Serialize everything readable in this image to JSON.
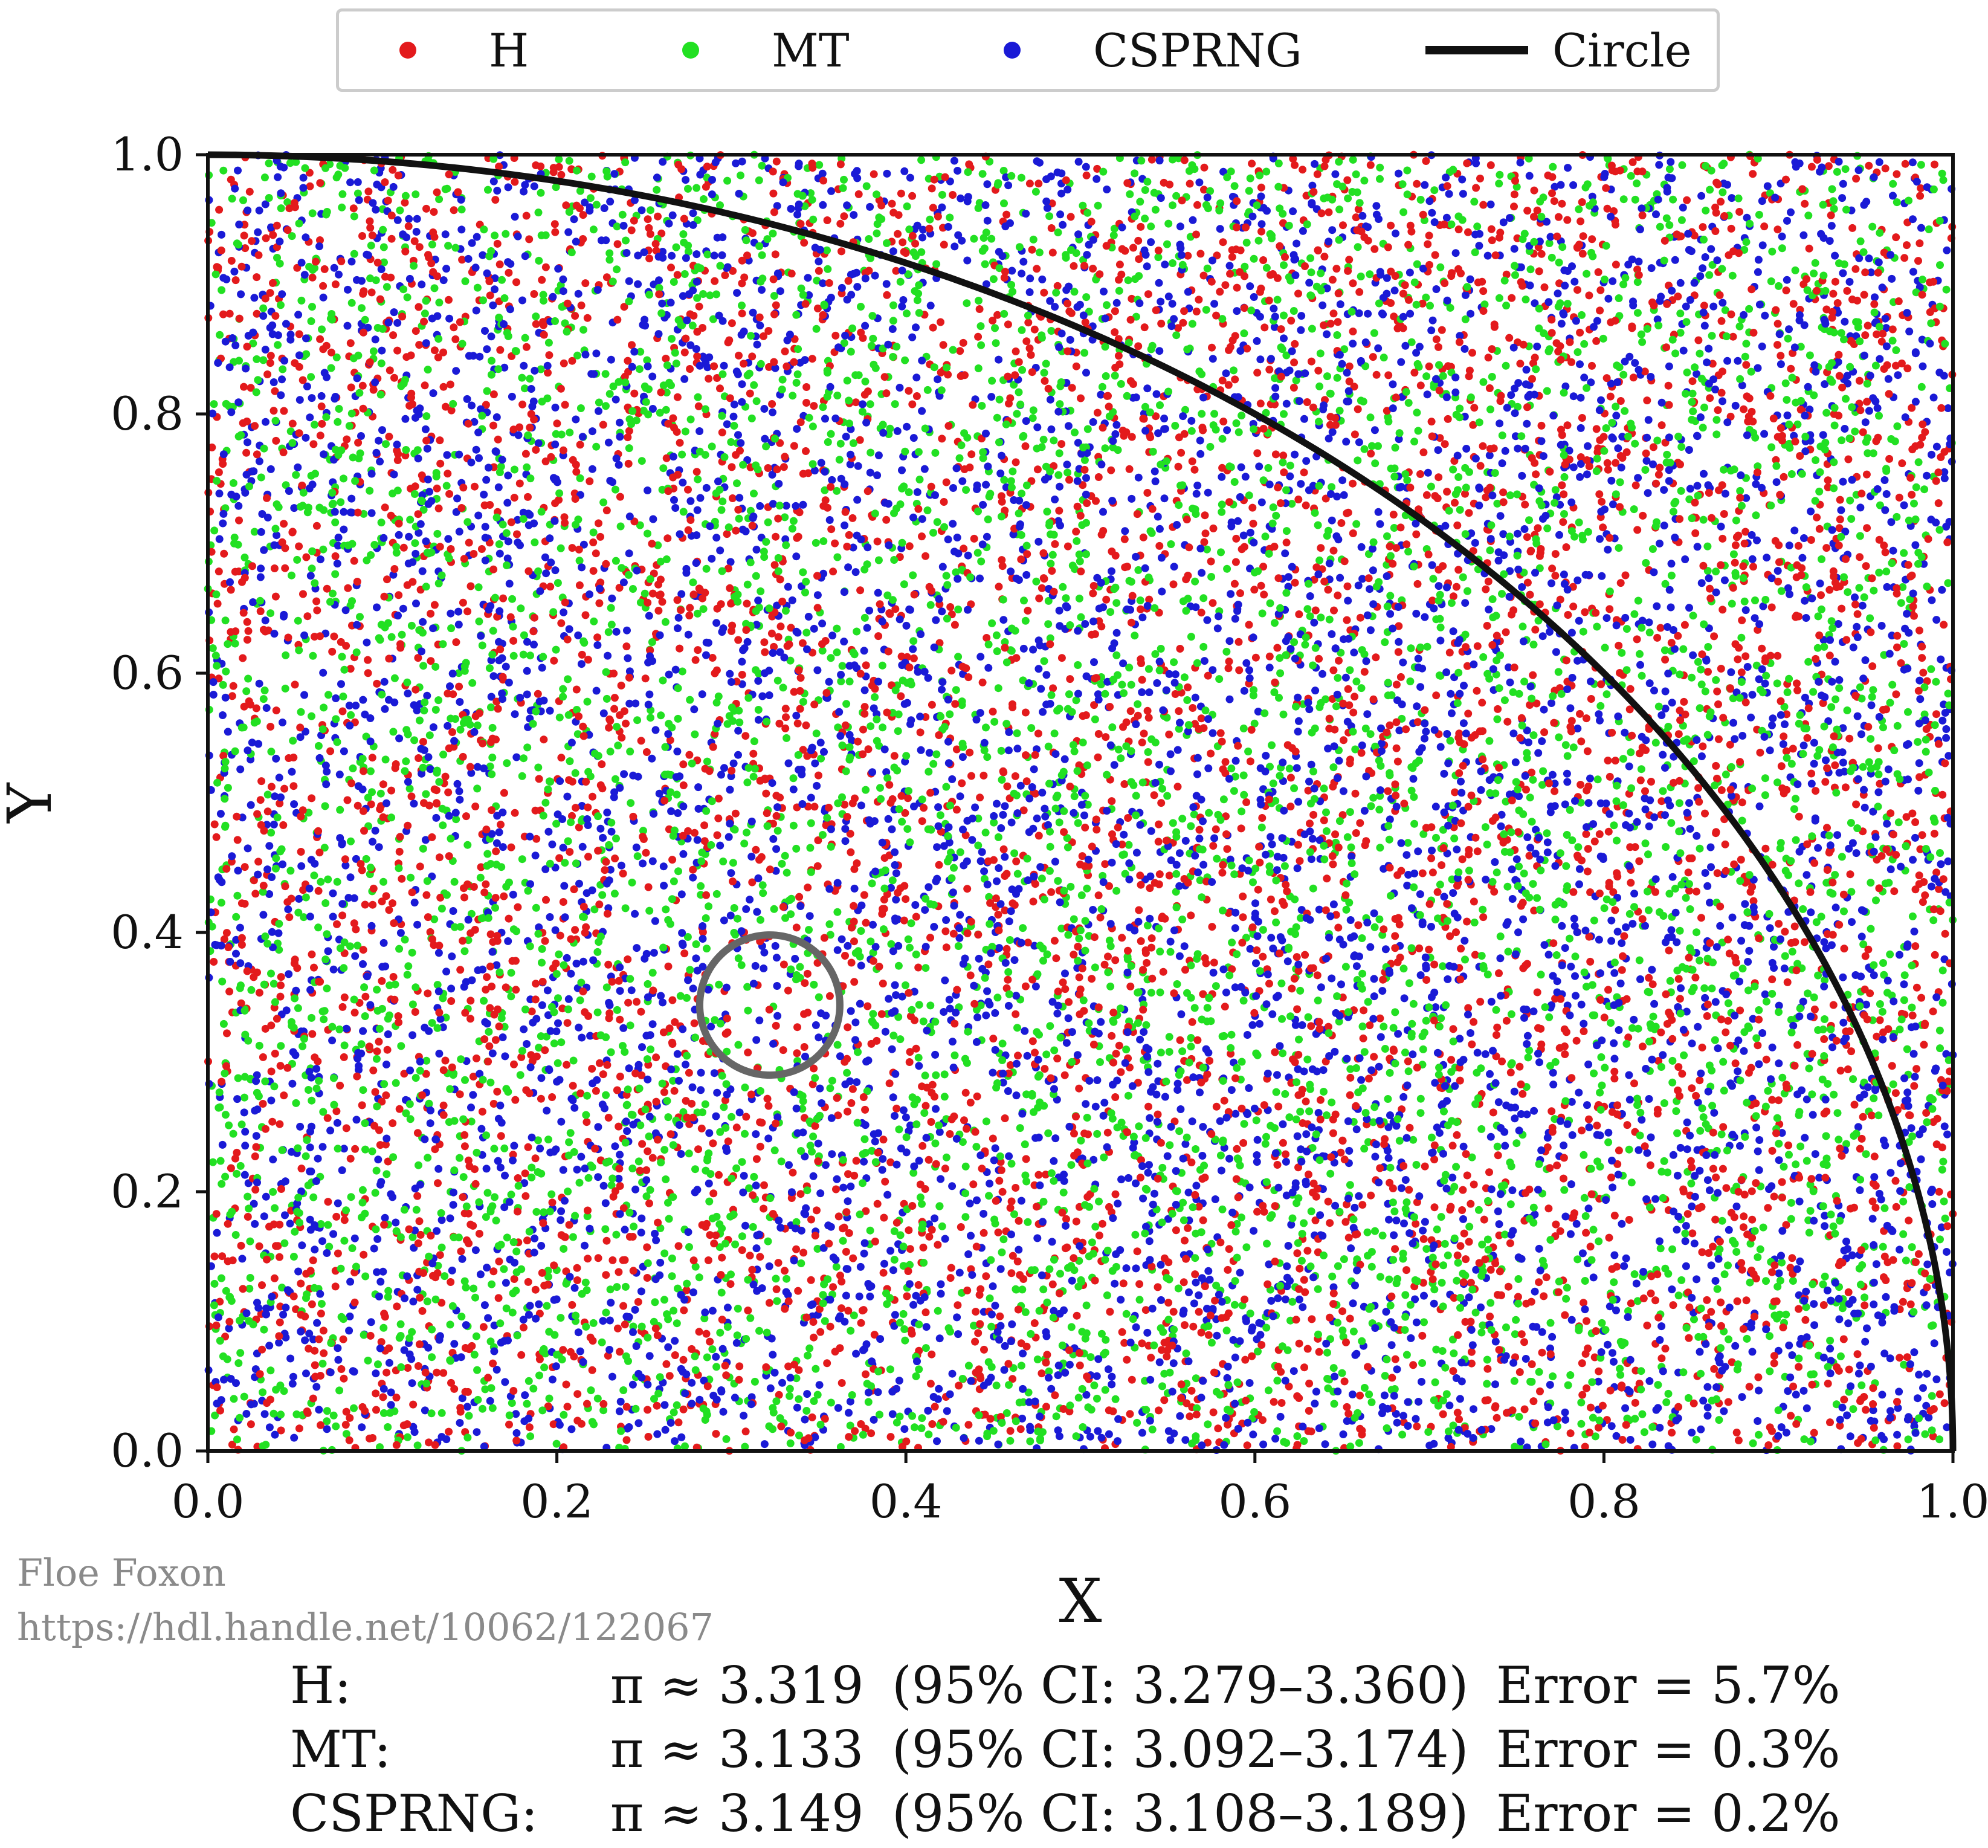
{
  "chart_data": {
    "type": "scatter",
    "title": "",
    "xlabel": "X",
    "ylabel": "Y",
    "xlim": [
      0.0,
      1.0
    ],
    "ylim": [
      0.0,
      1.0
    ],
    "x_ticks": [
      "0.0",
      "0.2",
      "0.4",
      "0.6",
      "0.8",
      "1.0"
    ],
    "y_ticks": [
      "0.0",
      "0.2",
      "0.4",
      "0.6",
      "0.8",
      "1.0"
    ],
    "grid": false,
    "legend_position": "top-center",
    "legend": [
      {
        "label": "H",
        "kind": "dot",
        "color": "#e31a1c"
      },
      {
        "label": "MT",
        "kind": "dot",
        "color": "#22e022"
      },
      {
        "label": "CSPRNG",
        "kind": "dot",
        "color": "#1a1ad6"
      },
      {
        "label": "Circle",
        "kind": "line",
        "color": "#111111"
      }
    ],
    "series": [
      {
        "name": "H",
        "color": "#e31a1c",
        "distribution": "uniform random points on [0,1]x[0,1]"
      },
      {
        "name": "MT",
        "color": "#22e022",
        "distribution": "uniform random points on [0,1]x[0,1]"
      },
      {
        "name": "CSPRNG",
        "color": "#1a1ad6",
        "distribution": "uniform random points on [0,1]x[0,1]"
      }
    ],
    "curve": {
      "name": "Circle",
      "equation": "x^2 + y^2 = 1",
      "color": "#111111"
    },
    "annotation": {
      "kind": "circle-highlight",
      "center": [
        0.322,
        0.344
      ],
      "color": "#666666"
    }
  },
  "credits": {
    "author": "Floe Foxon",
    "url": "https://hdl.handle.net/10062/122067"
  },
  "results": [
    {
      "label": "H:",
      "estimate": "π ≈ 3.319",
      "ci": "(95% CI: 3.279–3.360)",
      "error": "Error = 5.7%"
    },
    {
      "label": "MT:",
      "estimate": "π ≈ 3.133",
      "ci": "(95% CI: 3.092–3.174)",
      "error": "Error = 0.3%"
    },
    {
      "label": "CSPRNG:",
      "estimate": "π ≈ 3.149",
      "ci": "(95% CI: 3.108–3.189)",
      "error": "Error = 0.2%"
    }
  ]
}
